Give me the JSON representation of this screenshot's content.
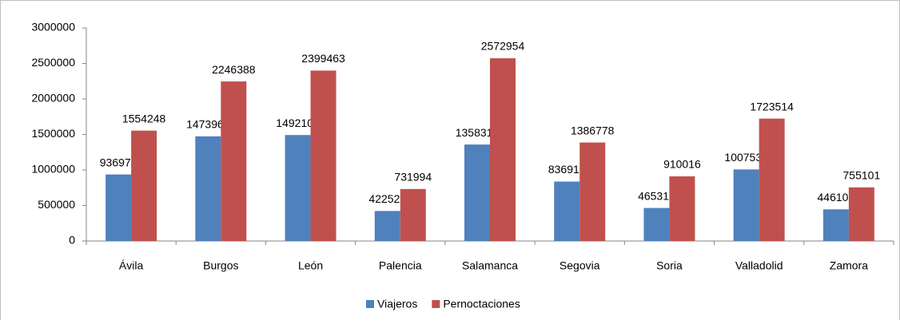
{
  "chart_data": {
    "type": "bar",
    "categories": [
      "Ávila",
      "Burgos",
      "León",
      "Palencia",
      "Salamanca",
      "Segovia",
      "Soria",
      "Valladolid",
      "Zamora"
    ],
    "series": [
      {
        "name": "Viajeros",
        "color": "#4f81bd",
        "values": [
          936973,
          1473962,
          1492106,
          422523,
          1358319,
          836912,
          465318,
          1007539,
          446105
        ]
      },
      {
        "name": "Pernoctaciones",
        "color": "#c0504d",
        "values": [
          1554248,
          2246388,
          2399463,
          731994,
          2572954,
          1386778,
          910016,
          1723514,
          755101
        ]
      }
    ],
    "ylim": [
      0,
      3000000
    ],
    "yticks": [
      0,
      500000,
      1000000,
      1500000,
      2000000,
      2500000,
      3000000
    ],
    "grid": false,
    "legend": "bottom"
  }
}
